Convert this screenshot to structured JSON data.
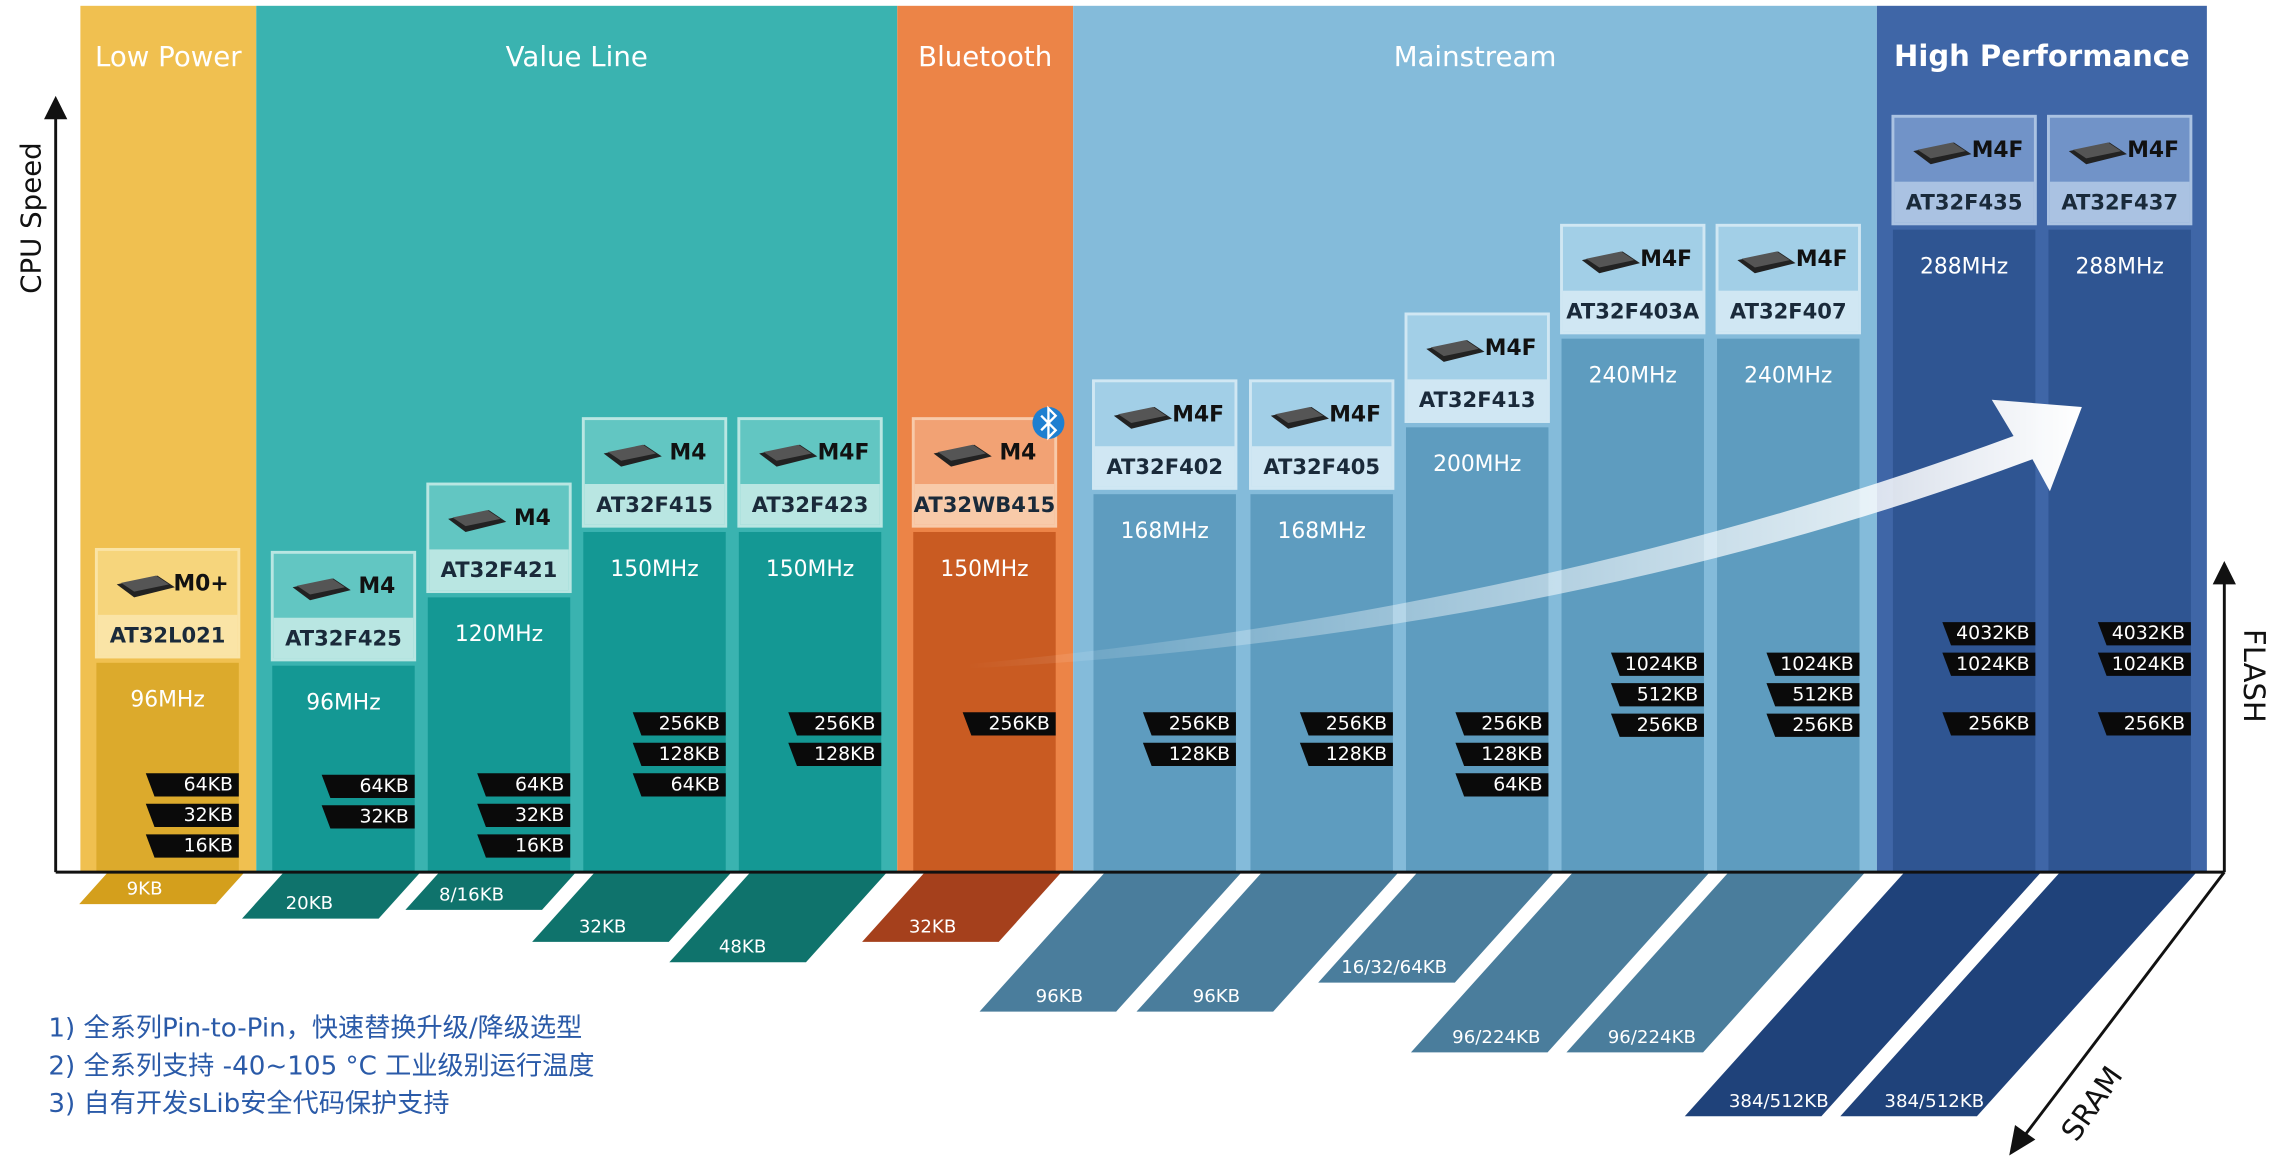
{
  "segments": [
    {
      "title": "Low Power"
    },
    {
      "title": "Value Line"
    },
    {
      "title": "Bluetooth"
    },
    {
      "title": "Mainstream"
    },
    {
      "title": "High Performance"
    }
  ],
  "chips": [
    {
      "name": "AT32L021",
      "core": "M0+",
      "speed": "96MHz",
      "flash": [
        "64KB",
        "32KB",
        "16KB"
      ],
      "sram": "9KB"
    },
    {
      "name": "AT32F425",
      "core": "M4",
      "speed": "96MHz",
      "flash": [
        "64KB",
        "32KB"
      ],
      "sram": "20KB"
    },
    {
      "name": "AT32F421",
      "core": "M4",
      "speed": "120MHz",
      "flash": [
        "64KB",
        "32KB",
        "16KB"
      ],
      "sram": "8/16KB"
    },
    {
      "name": "AT32F415",
      "core": "M4",
      "speed": "150MHz",
      "flash": [
        "256KB",
        "128KB",
        "64KB"
      ],
      "sram": "32KB"
    },
    {
      "name": "AT32F423",
      "core": "M4F",
      "speed": "150MHz",
      "flash": [
        "256KB",
        "128KB"
      ],
      "sram": "48KB"
    },
    {
      "name": "AT32WB415",
      "core": "M4",
      "speed": "150MHz",
      "flash": [
        "256KB"
      ],
      "sram": "32KB"
    },
    {
      "name": "AT32F402",
      "core": "M4F",
      "speed": "168MHz",
      "flash": [
        "256KB",
        "128KB"
      ],
      "sram": "96KB"
    },
    {
      "name": "AT32F405",
      "core": "M4F",
      "speed": "168MHz",
      "flash": [
        "256KB",
        "128KB"
      ],
      "sram": "96KB"
    },
    {
      "name": "AT32F413",
      "core": "M4F",
      "speed": "200MHz",
      "flash": [
        "256KB",
        "128KB",
        "64KB"
      ],
      "sram": "16/32/64KB"
    },
    {
      "name": "AT32F403A",
      "core": "M4F",
      "speed": "240MHz",
      "flash": [
        "1024KB",
        "512KB",
        "256KB"
      ],
      "sram": "96/224KB"
    },
    {
      "name": "AT32F407",
      "core": "M4F",
      "speed": "240MHz",
      "flash": [
        "1024KB",
        "512KB",
        "256KB"
      ],
      "sram": "96/224KB"
    },
    {
      "name": "AT32F435",
      "core": "M4F",
      "speed": "288MHz",
      "flash": [
        "4032KB",
        "1024KB",
        "256KB"
      ],
      "sram": "384/512KB"
    },
    {
      "name": "AT32F437",
      "core": "M4F",
      "speed": "288MHz",
      "flash": [
        "4032KB",
        "1024KB",
        "256KB"
      ],
      "sram": "384/512KB"
    }
  ],
  "axes": {
    "y": "CPU Speed",
    "flash": "FLASH",
    "sram": "SRAM"
  },
  "notes": [
    "1)  全系列Pin-to-Pin，快速替换升级/降级选型",
    "2)  全系列支持 -40~105 °C 工业级别运行温度",
    "3)  自有开发sLib安全代码保护支持"
  ]
}
